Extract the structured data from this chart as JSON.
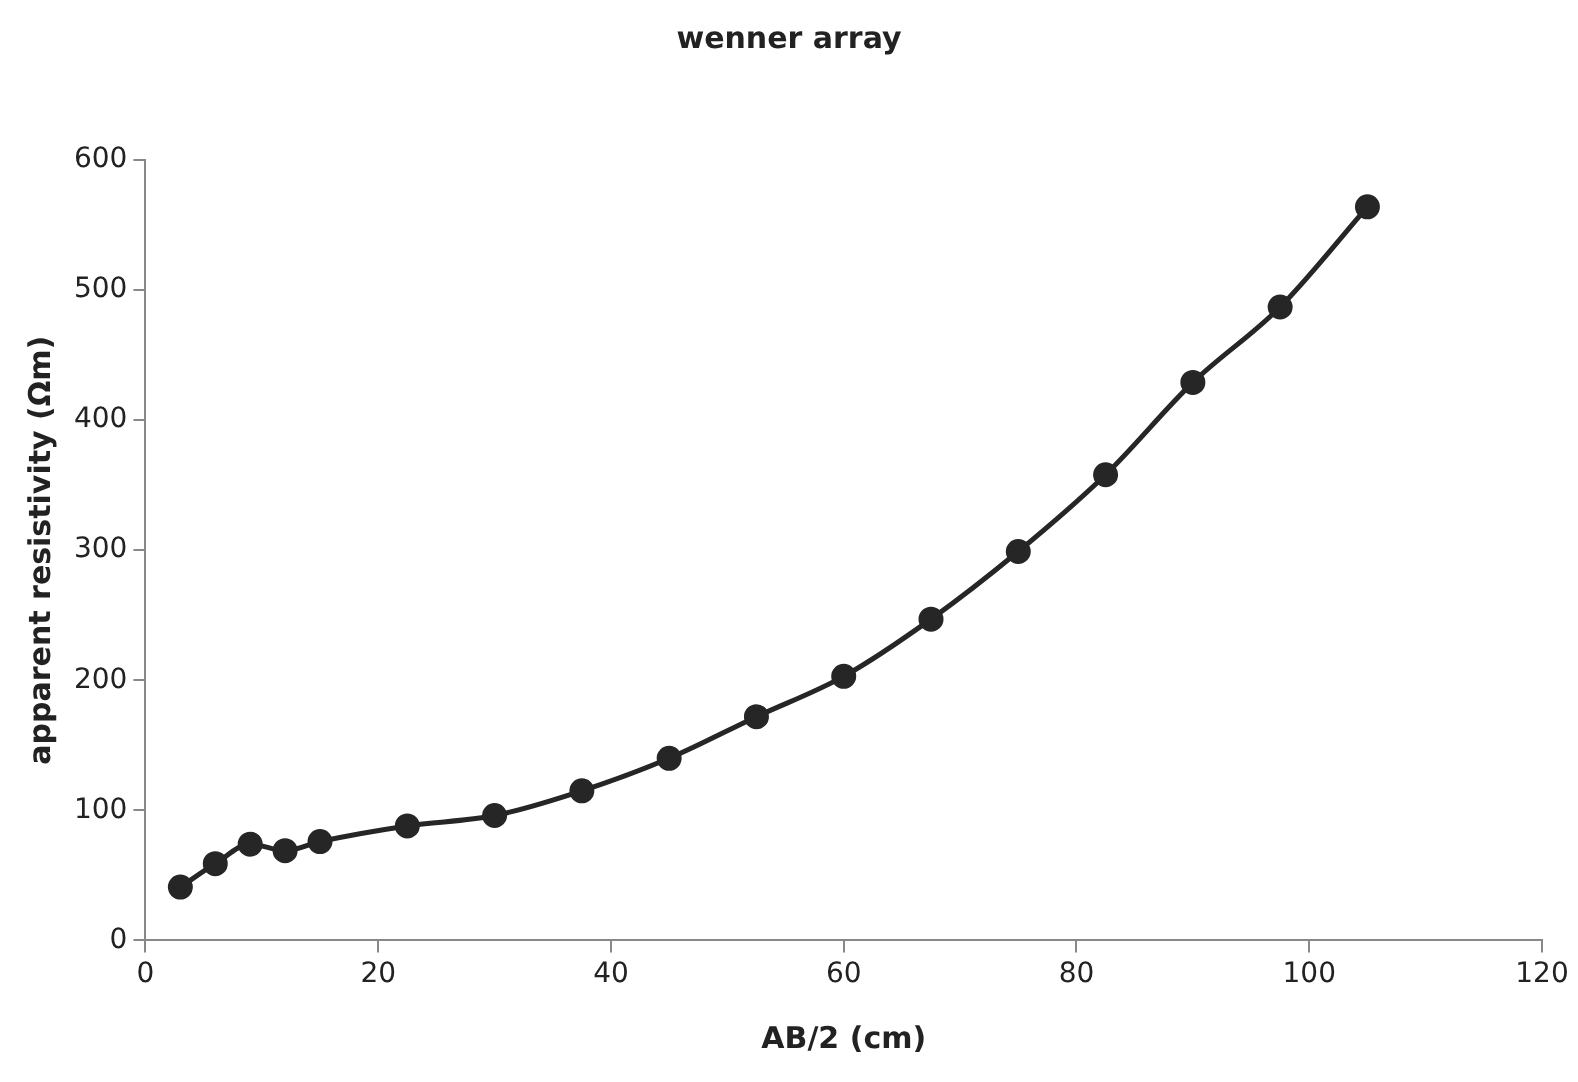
{
  "chart_data": {
    "type": "line",
    "title": "wenner array",
    "xlabel": "AB/2 (cm)",
    "ylabel": "apparent resistivity (Ωm)",
    "x": [
      3,
      6,
      9,
      12,
      15,
      22.5,
      30,
      37.5,
      45,
      52.5,
      60,
      67.5,
      75,
      82.5,
      90,
      97.5,
      105
    ],
    "series": [
      {
        "color": "#262626",
        "values": [
          41,
          59,
          74,
          69,
          76,
          88,
          96,
          115,
          140,
          172,
          203,
          247,
          299,
          358,
          429,
          487,
          564
        ]
      }
    ],
    "xlim": [
      0,
      120
    ],
    "xticks": [
      0,
      20,
      40,
      60,
      80,
      100,
      120
    ],
    "ylim": [
      0,
      600
    ],
    "yticks": [
      0,
      100,
      200,
      300,
      400,
      500,
      600
    ],
    "grid": false,
    "legend": false,
    "marker": "circle",
    "line_style": "solid"
  }
}
